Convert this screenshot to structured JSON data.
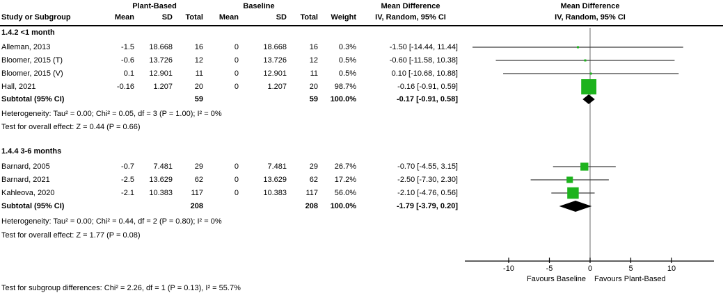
{
  "chart_data": {
    "type": "forest",
    "effect_measure": "Mean Difference",
    "method": "IV, Random, 95% CI",
    "columns": {
      "study": "Study or Subgroup",
      "mean": "Mean",
      "sd": "SD",
      "total": "Total",
      "weight": "Weight",
      "group_exp": "Plant-Based",
      "group_ctrl": "Baseline",
      "md": "Mean Difference",
      "iv": "IV, Random, 95% CI"
    },
    "subgroups": [
      {
        "title": "1.4.2 <1 month",
        "studies": [
          {
            "label": "Alleman, 2013",
            "mean": "-1.5",
            "sd": "18.668",
            "total": "16",
            "base_mean": "0",
            "base_sd": "18.668",
            "base_total": "16",
            "weight": "0.3%",
            "weight_pct": 0.3,
            "ci_text": "-1.50 [-14.44, 11.44]",
            "est": -1.5,
            "lo": -14.44,
            "hi": 11.44
          },
          {
            "label": "Bloomer, 2015 (T)",
            "mean": "-0.6",
            "sd": "13.726",
            "total": "12",
            "base_mean": "0",
            "base_sd": "13.726",
            "base_total": "12",
            "weight": "0.5%",
            "weight_pct": 0.5,
            "ci_text": "-0.60 [-11.58, 10.38]",
            "est": -0.6,
            "lo": -11.58,
            "hi": 10.38
          },
          {
            "label": "Bloomer, 2015 (V)",
            "mean": "0.1",
            "sd": "12.901",
            "total": "11",
            "base_mean": "0",
            "base_sd": "12.901",
            "base_total": "11",
            "weight": "0.5%",
            "weight_pct": 0.5,
            "ci_text": "0.10 [-10.68, 10.88]",
            "est": 0.1,
            "lo": -10.68,
            "hi": 10.88
          },
          {
            "label": "Hall, 2021",
            "mean": "-0.16",
            "sd": "1.207",
            "total": "20",
            "base_mean": "0",
            "base_sd": "1.207",
            "base_total": "20",
            "weight": "98.7%",
            "weight_pct": 98.7,
            "ci_text": "-0.16 [-0.91, 0.59]",
            "est": -0.16,
            "lo": -0.91,
            "hi": 0.59
          }
        ],
        "subtotal": {
          "label": "Subtotal (95% CI)",
          "total": "59",
          "base_total": "59",
          "weight": "100.0%",
          "ci_text": "-0.17 [-0.91, 0.58]",
          "est": -0.17,
          "lo": -0.91,
          "hi": 0.58
        },
        "heterogeneity": "Heterogeneity: Tau² = 0.00; Chi² = 0.05, df = 3 (P = 1.00); I² = 0%",
        "overall_effect": "Test for overall effect: Z = 0.44 (P = 0.66)"
      },
      {
        "title": "1.4.4 3-6 months",
        "studies": [
          {
            "label": "Barnard, 2005",
            "mean": "-0.7",
            "sd": "7.481",
            "total": "29",
            "base_mean": "0",
            "base_sd": "7.481",
            "base_total": "29",
            "weight": "26.7%",
            "weight_pct": 26.7,
            "ci_text": "-0.70 [-4.55, 3.15]",
            "est": -0.7,
            "lo": -4.55,
            "hi": 3.15
          },
          {
            "label": "Barnard, 2021",
            "mean": "-2.5",
            "sd": "13.629",
            "total": "62",
            "base_mean": "0",
            "base_sd": "13.629",
            "base_total": "62",
            "weight": "17.2%",
            "weight_pct": 17.2,
            "ci_text": "-2.50 [-7.30, 2.30]",
            "est": -2.5,
            "lo": -7.3,
            "hi": 2.3
          },
          {
            "label": "Kahleova, 2020",
            "mean": "-2.1",
            "sd": "10.383",
            "total": "117",
            "base_mean": "0",
            "base_sd": "10.383",
            "base_total": "117",
            "weight": "56.0%",
            "weight_pct": 56.0,
            "ci_text": "-2.10 [-4.76, 0.56]",
            "est": -2.1,
            "lo": -4.76,
            "hi": 0.56
          }
        ],
        "subtotal": {
          "label": "Subtotal (95% CI)",
          "total": "208",
          "base_total": "208",
          "weight": "100.0%",
          "ci_text": "-1.79 [-3.79, 0.20]",
          "est": -1.79,
          "lo": -3.79,
          "hi": 0.2
        },
        "heterogeneity": "Heterogeneity: Tau² = 0.00; Chi² = 0.44, df = 2 (P = 0.80); I² = 0%",
        "overall_effect": "Test for overall effect: Z = 1.77 (P = 0.08)"
      }
    ],
    "subgroup_difference": "Test for subgroup differences: Chi² = 2.26, df = 1 (P = 0.13), I² = 55.7%",
    "axis": {
      "ticks": [
        -10,
        -5,
        0,
        5,
        10
      ],
      "xmin": -15.3,
      "xmax": 15.2,
      "favours_left": "Favours Baseline",
      "favours_right": "Favours Plant-Based"
    },
    "colors": {
      "marker_green": "#1db31d",
      "diamond_black": "#000000",
      "ci_line": "#3c3c3c",
      "zero_line": "#808080",
      "axis_line": "#000000"
    }
  }
}
